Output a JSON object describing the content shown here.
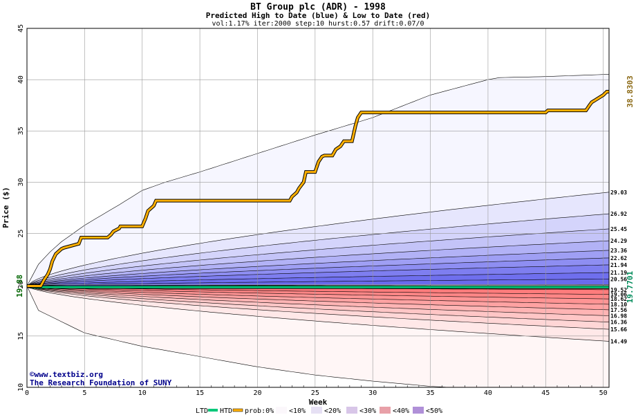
{
  "chart_data": {
    "type": "area",
    "title": "BT Group plc (ADR) - 1998",
    "subtitle": "Predicted High to Date (blue) &  Low to Date (red)",
    "params": "vol:1.17% iter:2000 step:10 hurst:0.57 drift:0.07/0",
    "xlabel": "Week",
    "ylabel": "Price ($)",
    "xlim": [
      0,
      50.5
    ],
    "ylim": [
      10,
      45
    ],
    "x_ticks": [
      0,
      5,
      10,
      15,
      20,
      25,
      30,
      35,
      40,
      45,
      50
    ],
    "y_ticks": [
      10,
      15,
      20,
      25,
      30,
      35,
      40,
      45
    ],
    "grid": true,
    "start_price": 19.88,
    "start_price_label": "19.88",
    "htd_current": 38.8303,
    "htd_current_label": "38.8303",
    "ltd_current": 19.7701,
    "ltd_current_label": "19.7701",
    "high_envelope": {
      "x": [
        0,
        1,
        2,
        3,
        5,
        8,
        10,
        12,
        15,
        20,
        25,
        30,
        35,
        40,
        41,
        45,
        50,
        50.5
      ],
      "y": [
        19.88,
        22,
        23.2,
        24.2,
        25.8,
        27.8,
        29.2,
        30.0,
        31.0,
        32.8,
        34.6,
        36.3,
        38.5,
        40.0,
        40.2,
        40.3,
        40.5,
        40.5
      ]
    },
    "low_envelope": {
      "x": [
        0,
        1,
        5,
        10,
        15,
        20,
        25,
        30,
        35,
        40,
        45,
        50,
        50.5
      ],
      "y": [
        19.88,
        17.5,
        15.3,
        14.0,
        13.0,
        12.0,
        11.2,
        10.6,
        10.1,
        9.8,
        9.5,
        9.2,
        9.1
      ]
    },
    "high_bands_end_labels": [
      "29.03",
      "26.92",
      "25.45",
      "24.29",
      "23.36",
      "22.62",
      "21.94",
      "21.19",
      "20.56"
    ],
    "high_bands_end_values": [
      29.03,
      26.92,
      25.45,
      24.29,
      23.36,
      22.62,
      21.94,
      21.19,
      20.56
    ],
    "low_bands_end_labels": [
      "19.52",
      "19.06",
      "18.62",
      "18.10",
      "17.56",
      "16.98",
      "16.36",
      "15.66",
      "14.49"
    ],
    "low_bands_end_values": [
      19.52,
      19.06,
      18.62,
      18.1,
      17.56,
      16.98,
      16.36,
      15.66,
      14.49
    ],
    "htd_series": {
      "name": "HTD",
      "x": [
        0,
        1.2,
        1.5,
        1.8,
        2,
        2.2,
        2.5,
        3.0,
        3.2,
        4.5,
        4.7,
        7.0,
        7.3,
        7.5,
        8.0,
        8.1,
        10.0,
        10.3,
        10.5,
        11.0,
        11.2,
        22.8,
        23.0,
        23.4,
        23.6,
        24.0,
        24.2,
        25.0,
        25.3,
        25.6,
        25.8,
        26.5,
        26.8,
        27.2,
        27.5,
        28.2,
        28.5,
        28.7,
        29.0,
        45.0,
        45.2,
        48.5,
        48.8,
        49.0,
        49.3,
        50.0,
        50.3,
        50.5
      ],
      "y": [
        19.88,
        19.88,
        20.5,
        21.0,
        21.5,
        22.3,
        23.0,
        23.5,
        23.6,
        24.0,
        24.6,
        24.6,
        24.9,
        25.2,
        25.5,
        25.7,
        25.7,
        26.5,
        27.2,
        27.7,
        28.2,
        28.2,
        28.6,
        29.0,
        29.4,
        30.0,
        31.0,
        31.0,
        32.0,
        32.5,
        32.6,
        32.6,
        33.2,
        33.5,
        34.0,
        34.0,
        35.5,
        36.3,
        36.8,
        36.8,
        37.0,
        37.0,
        37.5,
        37.8,
        38.0,
        38.5,
        38.83,
        38.83
      ]
    },
    "ltd_series": {
      "name": "LTD",
      "x": [
        0,
        0.5,
        1,
        1.5,
        50.5
      ],
      "y": [
        19.88,
        19.78,
        19.77,
        19.7701,
        19.7701
      ]
    },
    "legend": {
      "placement": "bottom",
      "items": [
        "LTD",
        "HTD",
        "prob:0%",
        "<10%",
        "<20%",
        "<30%",
        "<40%",
        "<50%"
      ]
    },
    "credit_line1": "©www.textbiz.org",
    "credit_line2": "The Research Foundation of SUNY"
  },
  "colors": {
    "htd": "#ffb000",
    "ltd": "#00c87a",
    "blue_bands": [
      "#f6f6ff",
      "#e6e6fd",
      "#d4d4fb",
      "#c4c4f8",
      "#b2b2f6",
      "#9f9ff4",
      "#8e8ef2",
      "#7e7ef0",
      "#6f6fee",
      "#6a6aed"
    ],
    "red_bands": [
      "#fff6f6",
      "#ffe8e8",
      "#ffd6d6",
      "#ffc6c6",
      "#ffb4b4",
      "#ffa2a2",
      "#ff9494",
      "#ff8686",
      "#ff7c7c",
      "#ff7777"
    ],
    "legend_swatches": [
      "#fbf7fb",
      "#e6e0f4",
      "#d8c6e8",
      "#c89ed8",
      "#b090d8"
    ],
    "legend_swatches_2": [
      "#fdf2f2",
      "#f4dada",
      "#ecc2c8",
      "#e8a0a8",
      "#e88080"
    ]
  }
}
